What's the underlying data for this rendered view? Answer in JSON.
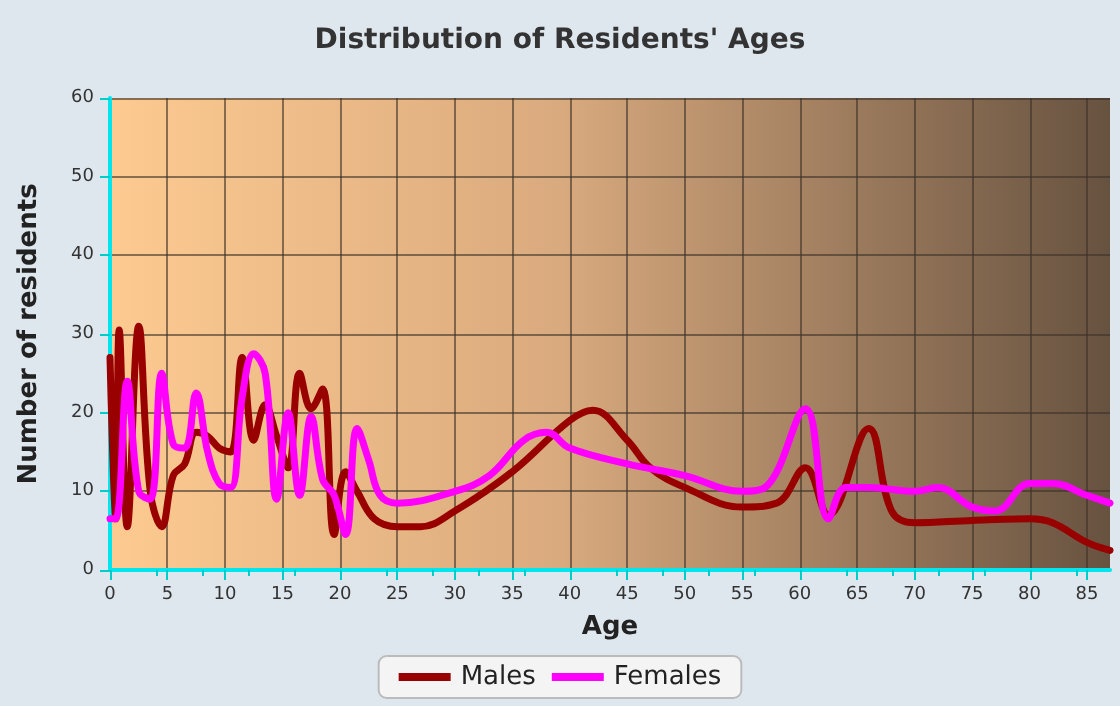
{
  "chart_data": {
    "type": "line",
    "title": "Distribution of Residents' Ages",
    "xlabel": "Age",
    "ylabel": "Number of residents",
    "xlim": [
      0,
      87
    ],
    "xticks": [
      0,
      5,
      10,
      15,
      20,
      25,
      30,
      35,
      40,
      45,
      50,
      55,
      60,
      65,
      70,
      75,
      80,
      85
    ],
    "ylim": [
      0,
      60
    ],
    "yticks": [
      0,
      10,
      20,
      30,
      40,
      50,
      60
    ],
    "grid": true,
    "legend": "bottom",
    "series": [
      {
        "name": "Males",
        "color": "#990000",
        "x": [
          0,
          0.5,
          0.8,
          1.5,
          2.5,
          3.5,
          4.5,
          5.5,
          6.5,
          7.5,
          8.5,
          9.5,
          10.5,
          11.5,
          12.5,
          13.5,
          14.5,
          15.5,
          16.5,
          17.5,
          18.5,
          19.5,
          20.5,
          21.5,
          23,
          25,
          27,
          30,
          35,
          40,
          42,
          45,
          47,
          50,
          55,
          58,
          60.5,
          62.5,
          66,
          68,
          70,
          75,
          80,
          82,
          85,
          87
        ],
        "values": [
          27,
          6.5,
          30.5,
          5.5,
          31,
          10,
          5.5,
          12,
          13.5,
          17.5,
          17,
          15.5,
          15,
          27,
          16.5,
          21,
          17,
          13,
          25,
          20.5,
          23,
          4.5,
          12.5,
          10,
          6.5,
          5.5,
          5.5,
          7.5,
          12.5,
          19,
          20.3,
          16.5,
          13,
          10.5,
          8,
          8.5,
          13,
          7,
          18,
          7.5,
          6,
          6.3,
          6.5,
          6,
          3.5,
          2.5
        ]
      },
      {
        "name": "Females",
        "color": "#ff00ff",
        "x": [
          0,
          0.5,
          1.5,
          2.5,
          3.5,
          4.5,
          5.5,
          6.5,
          7.5,
          8.5,
          9.5,
          10.5,
          11.5,
          12.5,
          13.5,
          14.5,
          15.5,
          16.5,
          17.5,
          18.5,
          19.5,
          20.5,
          21.5,
          22.5,
          23.5,
          25,
          30,
          33,
          36,
          38,
          40,
          45,
          50,
          55,
          57,
          60.5,
          62.5,
          64,
          66,
          70,
          72,
          75,
          77,
          80,
          82,
          85,
          87
        ],
        "values": [
          6.5,
          6.5,
          24,
          10,
          9,
          25,
          16,
          15.5,
          22.5,
          15,
          11,
          10.5,
          22,
          27.5,
          25,
          9,
          20,
          9.5,
          19.5,
          11.5,
          9.5,
          4.5,
          18,
          14,
          9.5,
          8.5,
          10,
          12,
          16.5,
          17.5,
          15.5,
          13.5,
          12,
          10,
          10.5,
          20.5,
          6.5,
          10.5,
          10.5,
          10,
          10.5,
          8,
          7.5,
          11,
          11,
          9.5,
          8.5
        ]
      }
    ]
  }
}
